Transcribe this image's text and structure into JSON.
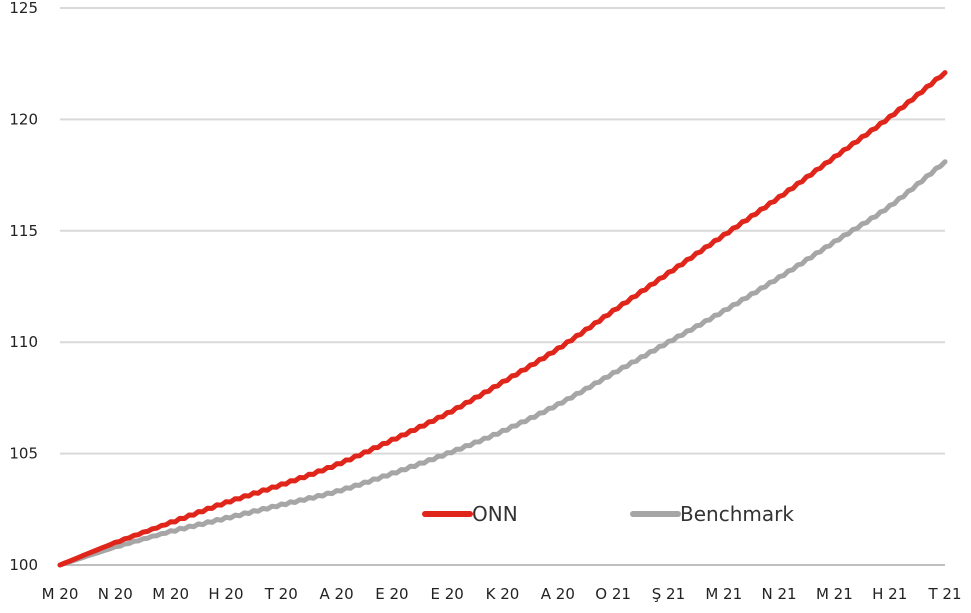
{
  "chart_data": {
    "type": "line",
    "title": "",
    "xlabel": "",
    "ylabel": "",
    "ylim": [
      100,
      125
    ],
    "yticks": [
      100,
      105,
      110,
      115,
      120,
      125
    ],
    "x_tick_labels": [
      "M 20",
      "N 20",
      "M 20",
      "H 20",
      "T 20",
      "A 20",
      "E 20",
      "E 20",
      "K 20",
      "A 20",
      "O 21",
      "Ş 21",
      "M 21",
      "N 21",
      "M 21",
      "H 21",
      "T 21"
    ],
    "grid": "horizontal",
    "legend_position": "bottom-right",
    "series": [
      {
        "name": "ONN",
        "color": "#e0251b",
        "values": [
          100.0,
          101.0,
          101.9,
          102.8,
          103.6,
          104.5,
          105.6,
          106.8,
          108.2,
          109.7,
          111.4,
          113.1,
          114.8,
          116.5,
          118.3,
          120.1,
          122.1
        ]
      },
      {
        "name": "Benchmark",
        "color": "#a6a6a6",
        "values": [
          100.0,
          100.8,
          101.5,
          102.1,
          102.7,
          103.3,
          104.1,
          105.0,
          106.0,
          107.2,
          108.6,
          110.0,
          111.4,
          112.9,
          114.5,
          116.1,
          118.1
        ]
      }
    ]
  }
}
